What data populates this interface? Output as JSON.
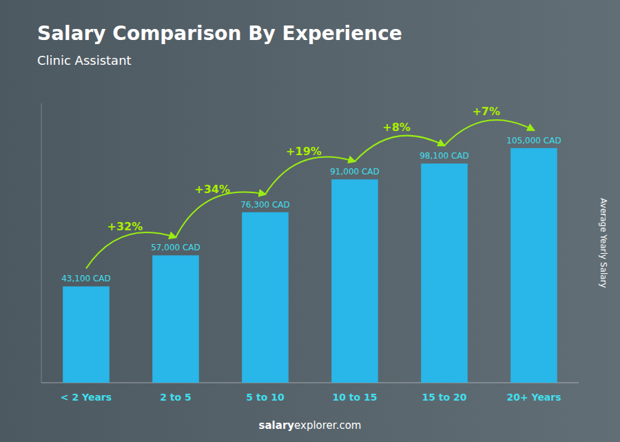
{
  "chart_data": {
    "type": "bar",
    "title": "Salary Comparison By Experience",
    "subtitle": "Clinic Assistant",
    "ylabel": "Average Yearly Salary",
    "categories": [
      "< 2 Years",
      "2 to 5",
      "5 to 10",
      "10 to 15",
      "15 to 20",
      "20+ Years"
    ],
    "values": [
      43100,
      57000,
      76300,
      91000,
      98100,
      105000
    ],
    "value_labels": [
      "43,100 CAD",
      "57,000 CAD",
      "76,300 CAD",
      "91,000 CAD",
      "98,100 CAD",
      "105,000 CAD"
    ],
    "data_labels": true,
    "color": "#29b6e8",
    "ylim": [
      0,
      125000
    ],
    "grid": false,
    "tick_labels": "x",
    "annotations": [
      "+32%",
      "+34%",
      "+19%",
      "+8%",
      "+7%"
    ],
    "footer": [
      "salary",
      "explorer.com"
    ]
  }
}
